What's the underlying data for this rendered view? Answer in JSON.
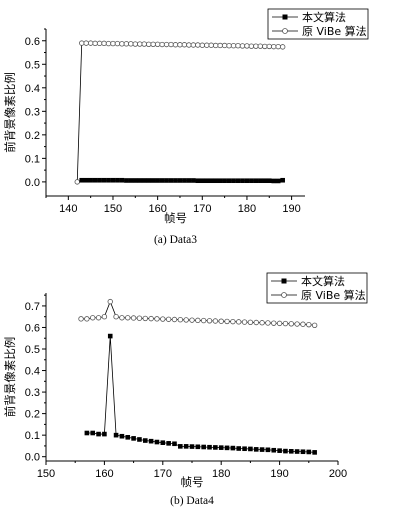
{
  "chart_data": [
    {
      "type": "line",
      "xlabel": "帧号",
      "ylabel": "前背景像素比例",
      "caption": "(a) Data3",
      "xlim": [
        135,
        193
      ],
      "ylim": [
        -0.06,
        0.65
      ],
      "xticks": [
        140,
        150,
        160,
        170,
        180,
        190
      ],
      "yticks": [
        0.0,
        0.1,
        0.2,
        0.3,
        0.4,
        0.5,
        0.6
      ],
      "legend": "top-right",
      "series": [
        {
          "name": "本文算法",
          "marker": "filled-square",
          "x": [
            143,
            144,
            145,
            146,
            147,
            148,
            149,
            150,
            151,
            152,
            153,
            154,
            155,
            156,
            157,
            158,
            159,
            160,
            161,
            162,
            163,
            164,
            165,
            166,
            167,
            168,
            169,
            170,
            171,
            172,
            173,
            174,
            175,
            176,
            177,
            178,
            179,
            180,
            181,
            182,
            183,
            184,
            185,
            186,
            187,
            188
          ],
          "y": [
            0.007,
            0.007,
            0.007,
            0.007,
            0.007,
            0.007,
            0.007,
            0.007,
            0.007,
            0.007,
            0.006,
            0.006,
            0.006,
            0.006,
            0.006,
            0.006,
            0.006,
            0.006,
            0.006,
            0.006,
            0.006,
            0.006,
            0.006,
            0.006,
            0.006,
            0.006,
            0.005,
            0.005,
            0.005,
            0.005,
            0.005,
            0.005,
            0.005,
            0.005,
            0.005,
            0.005,
            0.005,
            0.005,
            0.005,
            0.005,
            0.005,
            0.005,
            0.005,
            0.004,
            0.004,
            0.007
          ]
        },
        {
          "name": "原 ViBe 算法",
          "marker": "open-circle",
          "x": [
            142,
            143,
            144,
            145,
            146,
            147,
            148,
            149,
            150,
            151,
            152,
            153,
            154,
            155,
            156,
            157,
            158,
            159,
            160,
            161,
            162,
            163,
            164,
            165,
            166,
            167,
            168,
            169,
            170,
            171,
            172,
            173,
            174,
            175,
            176,
            177,
            178,
            179,
            180,
            181,
            182,
            183,
            184,
            185,
            186,
            187,
            188
          ],
          "y": [
            0.0,
            0.59,
            0.59,
            0.59,
            0.589,
            0.589,
            0.589,
            0.588,
            0.588,
            0.588,
            0.587,
            0.587,
            0.587,
            0.586,
            0.586,
            0.586,
            0.585,
            0.585,
            0.585,
            0.584,
            0.584,
            0.584,
            0.583,
            0.583,
            0.583,
            0.582,
            0.582,
            0.582,
            0.581,
            0.581,
            0.581,
            0.58,
            0.58,
            0.58,
            0.579,
            0.579,
            0.579,
            0.578,
            0.578,
            0.577,
            0.577,
            0.577,
            0.576,
            0.576,
            0.575,
            0.575,
            0.574
          ]
        }
      ]
    },
    {
      "type": "line",
      "xlabel": "帧号",
      "ylabel": "前背景像素比例",
      "caption": "(b) Data4",
      "xlim": [
        150,
        200
      ],
      "ylim": [
        -0.02,
        0.76
      ],
      "xticks": [
        150,
        160,
        170,
        180,
        190,
        200
      ],
      "yticks": [
        0.0,
        0.1,
        0.2,
        0.3,
        0.4,
        0.5,
        0.6,
        0.7
      ],
      "legend": "top-right",
      "series": [
        {
          "name": "本文算法",
          "marker": "filled-square",
          "x": [
            157,
            158,
            159,
            160,
            161,
            162,
            163,
            164,
            165,
            166,
            167,
            168,
            169,
            170,
            171,
            172,
            173,
            174,
            175,
            176,
            177,
            178,
            179,
            180,
            181,
            182,
            183,
            184,
            185,
            186,
            187,
            188,
            189,
            190,
            191,
            192,
            193,
            194,
            195,
            196
          ],
          "y": [
            0.11,
            0.11,
            0.105,
            0.105,
            0.56,
            0.1,
            0.095,
            0.09,
            0.085,
            0.08,
            0.075,
            0.072,
            0.068,
            0.065,
            0.062,
            0.06,
            0.048,
            0.048,
            0.047,
            0.046,
            0.045,
            0.044,
            0.043,
            0.042,
            0.041,
            0.04,
            0.038,
            0.037,
            0.036,
            0.034,
            0.033,
            0.032,
            0.03,
            0.028,
            0.026,
            0.025,
            0.024,
            0.023,
            0.022,
            0.02
          ]
        },
        {
          "name": "原 ViBe 算法",
          "marker": "open-circle",
          "x": [
            156,
            157,
            158,
            159,
            160,
            161,
            162,
            163,
            164,
            165,
            166,
            167,
            168,
            169,
            170,
            171,
            172,
            173,
            174,
            175,
            176,
            177,
            178,
            179,
            180,
            181,
            182,
            183,
            184,
            185,
            186,
            187,
            188,
            189,
            190,
            191,
            192,
            193,
            194,
            195,
            196
          ],
          "y": [
            0.64,
            0.64,
            0.645,
            0.645,
            0.65,
            0.72,
            0.65,
            0.645,
            0.645,
            0.644,
            0.643,
            0.642,
            0.641,
            0.64,
            0.639,
            0.638,
            0.637,
            0.636,
            0.635,
            0.634,
            0.633,
            0.632,
            0.631,
            0.63,
            0.629,
            0.628,
            0.627,
            0.626,
            0.625,
            0.624,
            0.623,
            0.622,
            0.621,
            0.62,
            0.619,
            0.618,
            0.617,
            0.616,
            0.615,
            0.613,
            0.61
          ]
        }
      ]
    }
  ]
}
